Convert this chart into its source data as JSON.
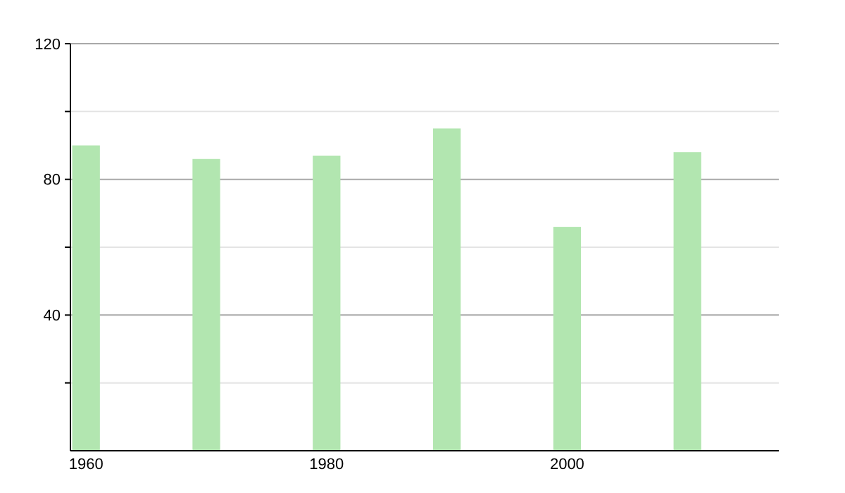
{
  "chart_data": {
    "type": "bar",
    "x": [
      1960,
      1970,
      1980,
      1990,
      2000,
      2010
    ],
    "values": [
      90,
      86,
      87,
      95,
      66,
      88
    ],
    "color": "#b2e6b0",
    "xlim": [
      1958.7,
      2017.6
    ],
    "xticks": [
      1960,
      1980,
      2000
    ],
    "ylim": [
      0,
      120
    ],
    "yticks": [
      {
        "value": 20,
        "label": null
      },
      40,
      {
        "value": 60,
        "label": null
      },
      80,
      {
        "value": 100,
        "label": null
      },
      120
    ],
    "grid": "y"
  }
}
